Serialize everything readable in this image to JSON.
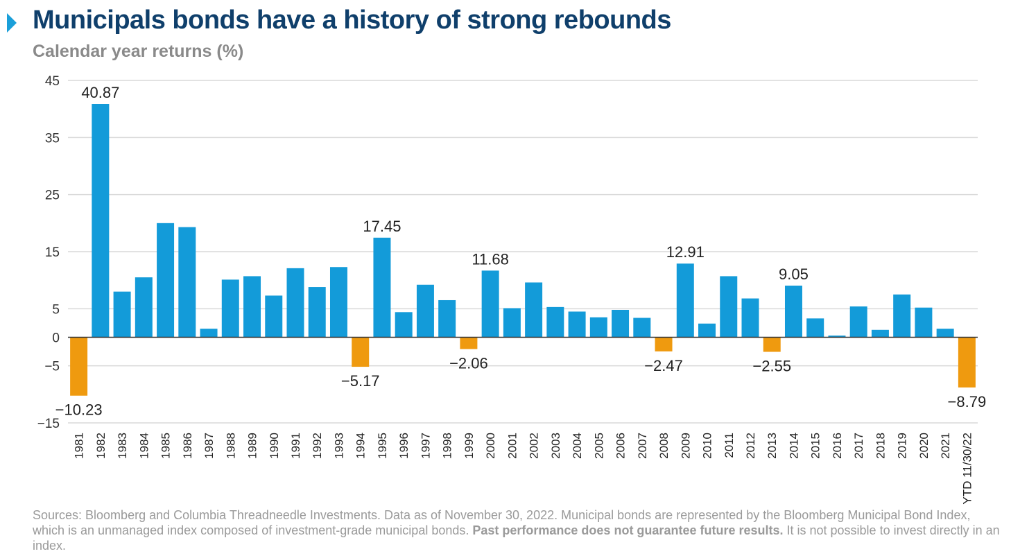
{
  "header": {
    "title": "Municipals bonds have a history of strong rebounds",
    "subtitle": "Calendar year returns (%)"
  },
  "chart_data": {
    "type": "bar",
    "title": "Municipals bonds have a history of strong rebounds",
    "ylabel": "Calendar year returns (%)",
    "ylim": [
      -15,
      45
    ],
    "yticks": [
      45,
      35,
      25,
      15,
      5,
      0,
      -5,
      -15
    ],
    "categories": [
      "1981",
      "1982",
      "1983",
      "1984",
      "1985",
      "1986",
      "1987",
      "1988",
      "1989",
      "1990",
      "1991",
      "1992",
      "1993",
      "1994",
      "1995",
      "1996",
      "1997",
      "1998",
      "1999",
      "2000",
      "2001",
      "2002",
      "2003",
      "2004",
      "2005",
      "2006",
      "2007",
      "2008",
      "2009",
      "2010",
      "2011",
      "2012",
      "2013",
      "2014",
      "2015",
      "2016",
      "2017",
      "2018",
      "2019",
      "2020",
      "2021",
      "YTD 11/30/22"
    ],
    "values": [
      -10.23,
      40.87,
      8.0,
      10.5,
      20.0,
      19.3,
      1.5,
      10.1,
      10.7,
      7.3,
      12.1,
      8.8,
      12.3,
      -5.17,
      17.45,
      4.4,
      9.2,
      6.5,
      -2.06,
      11.68,
      5.1,
      9.6,
      5.3,
      4.5,
      3.5,
      4.8,
      3.4,
      -2.47,
      12.91,
      2.4,
      10.7,
      6.8,
      -2.55,
      9.05,
      3.3,
      0.3,
      5.4,
      1.3,
      7.5,
      5.2,
      1.5,
      -8.79
    ],
    "labeled_points": [
      {
        "category": "1981",
        "text": "−10.23"
      },
      {
        "category": "1982",
        "text": "40.87"
      },
      {
        "category": "1994",
        "text": "−5.17"
      },
      {
        "category": "1995",
        "text": "17.45"
      },
      {
        "category": "1999",
        "text": "−2.06"
      },
      {
        "category": "2000",
        "text": "11.68"
      },
      {
        "category": "2008",
        "text": "−2.47"
      },
      {
        "category": "2009",
        "text": "12.91"
      },
      {
        "category": "2013",
        "text": "−2.55"
      },
      {
        "category": "2014",
        "text": "9.05"
      },
      {
        "category": "YTD 11/30/22",
        "text": "−8.79"
      }
    ],
    "colors": {
      "positive": "#139bd9",
      "negative": "#ef9a0f",
      "grid": "#d9d9d9",
      "axis": "#333333"
    },
    "grid": true,
    "legend": "none"
  },
  "footnote": {
    "part1": "Sources: Bloomberg and Columbia Threadneedle Investments. Data as of November 30, 2022. Municipal bonds are represented by the Bloomberg Municipal Bond Index, which is an unmanaged index composed of investment-grade municipal bonds. ",
    "bold": "Past performance does not guarantee future results.",
    "part2": " It is not possible to invest directly in an index."
  }
}
